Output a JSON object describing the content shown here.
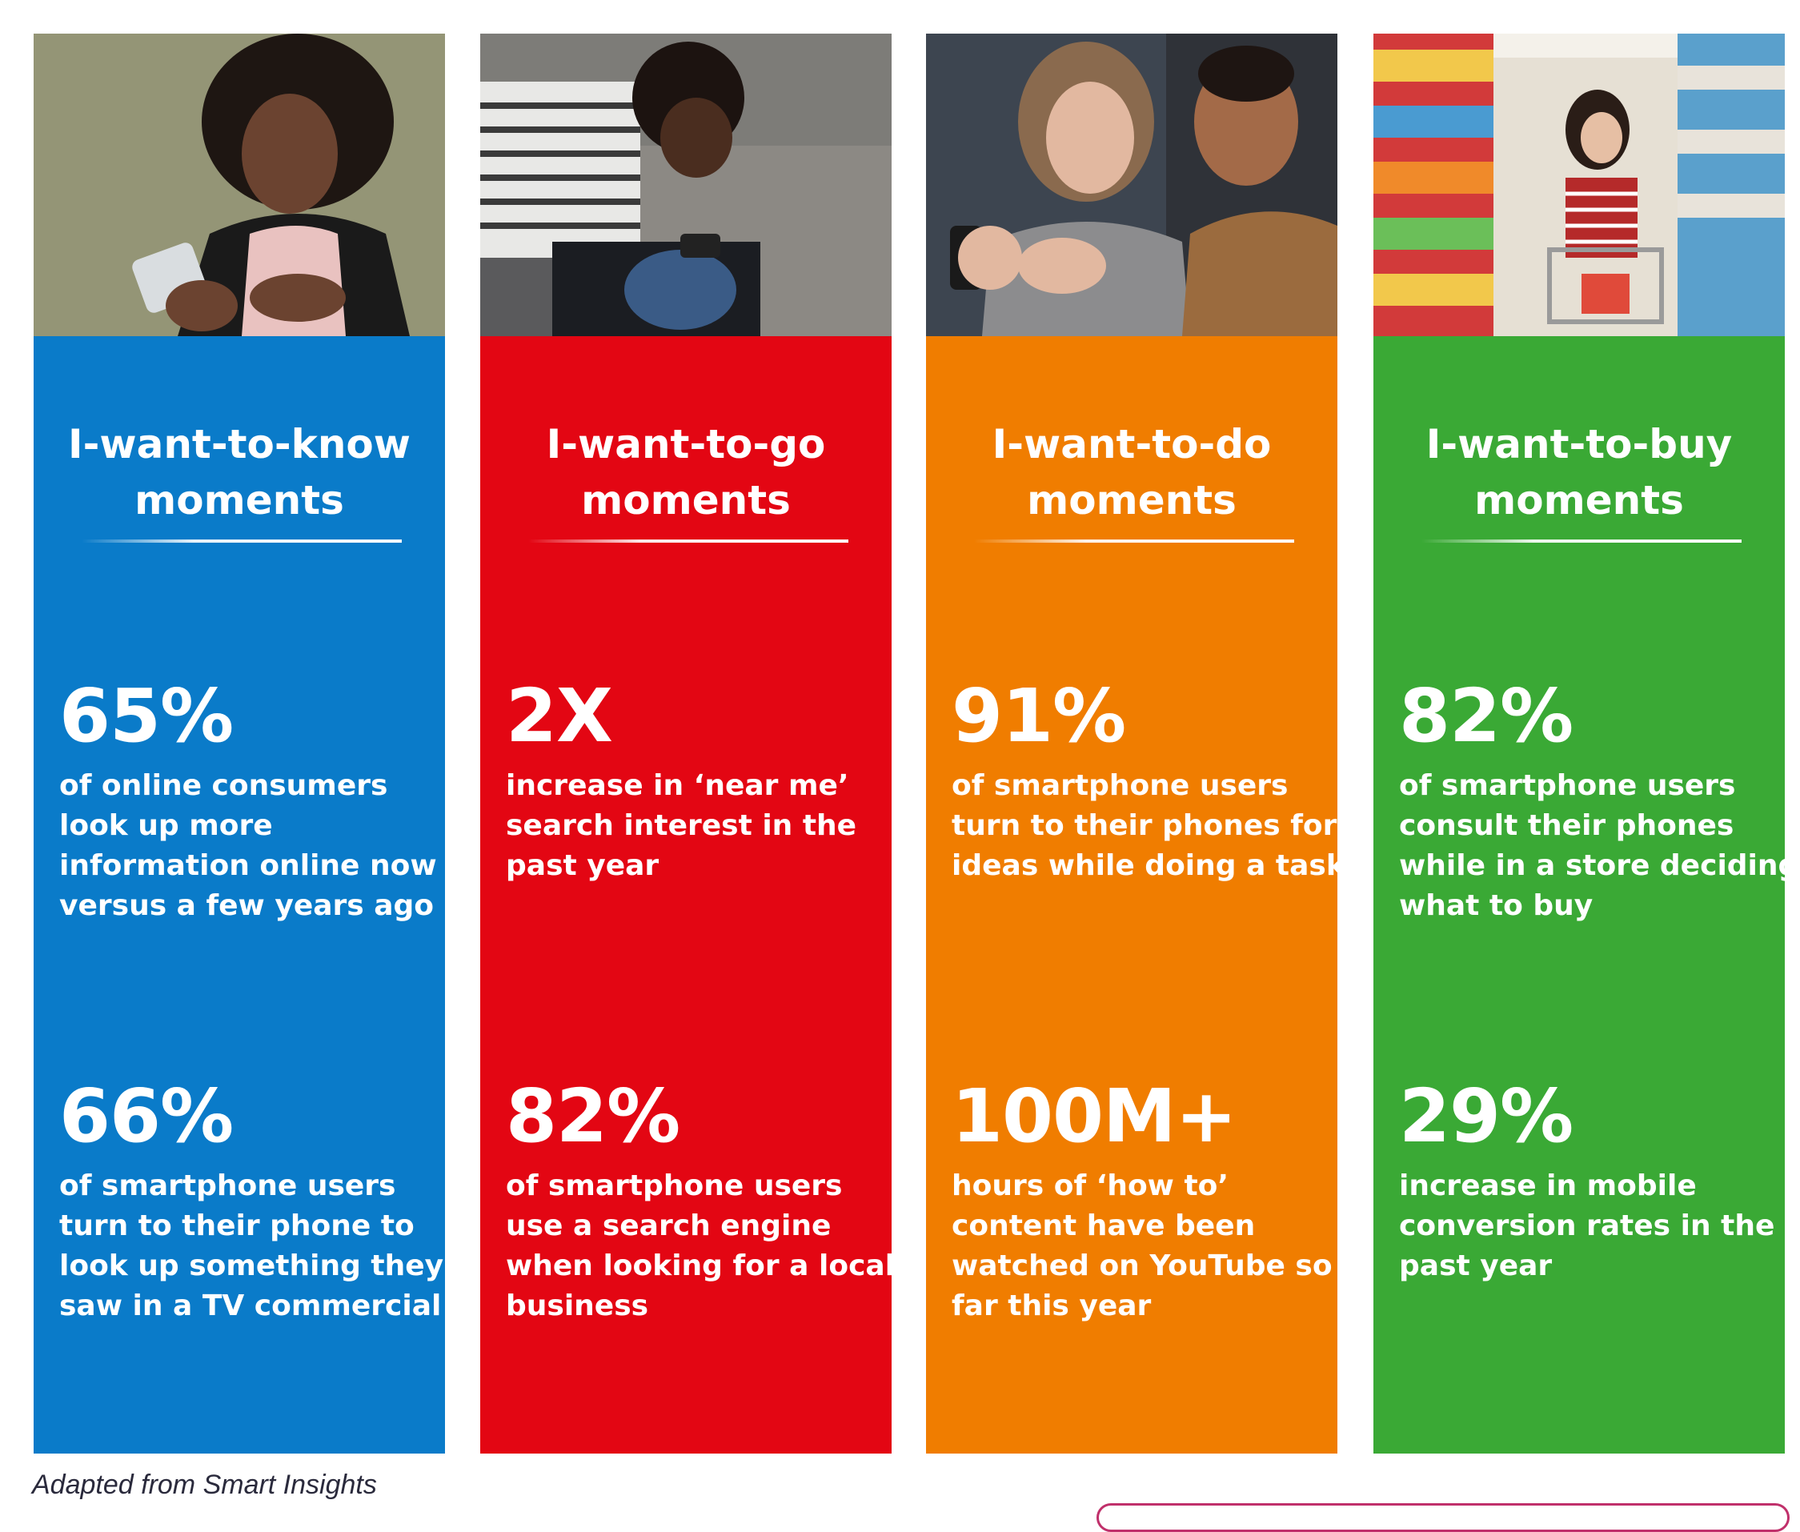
{
  "colors": {
    "know": "#0a7bc9",
    "go": "#e30613",
    "do": "#f07d00",
    "buy": "#3aa935",
    "text": "#ffffff",
    "credit": "#2a2a3c"
  },
  "columns": [
    {
      "heading_line1": "I-want-to-know",
      "heading_line2": "moments",
      "photo_icon": "person-with-phone-photo",
      "stat1": {
        "value": "65%",
        "desc": [
          "of online consumers",
          "look up more",
          "information online now",
          "versus a few years ago"
        ]
      },
      "stat2": {
        "value": "66%",
        "desc": [
          "of smartphone users",
          "turn to their phone to",
          "look up something they",
          "saw in a TV commercial"
        ]
      }
    },
    {
      "heading_line1": "I-want-to-go",
      "heading_line2": "moments",
      "photo_icon": "man-sitting-with-phone-photo",
      "stat1": {
        "value": "2X",
        "desc": [
          "increase in ‘near me’",
          "search interest in the",
          "past year"
        ]
      },
      "stat2": {
        "value": "82%",
        "desc": [
          "of smartphone users",
          "use a search engine",
          "when looking for a local",
          "business"
        ]
      }
    },
    {
      "heading_line1": "I-want-to-do",
      "heading_line2": "moments",
      "photo_icon": "two-people-with-phone-photo",
      "stat1": {
        "value": "91%",
        "desc": [
          "of smartphone users",
          "turn to their phones for",
          "ideas while doing a task"
        ]
      },
      "stat2": {
        "value": "100M+",
        "desc": [
          "hours of ‘how to’",
          "content have been",
          "watched on YouTube so",
          "far this year"
        ]
      }
    },
    {
      "heading_line1": "I-want-to-buy",
      "heading_line2": "moments",
      "photo_icon": "shopper-in-store-photo",
      "stat1": {
        "value": "82%",
        "desc": [
          "of smartphone users",
          "consult their phones",
          "while in a store deciding",
          "what to buy"
        ]
      },
      "stat2": {
        "value": "29%",
        "desc": [
          "increase in mobile",
          "conversion rates in the",
          "past year"
        ]
      }
    }
  ],
  "footer": {
    "credit": "Adapted from Smart Insights"
  }
}
